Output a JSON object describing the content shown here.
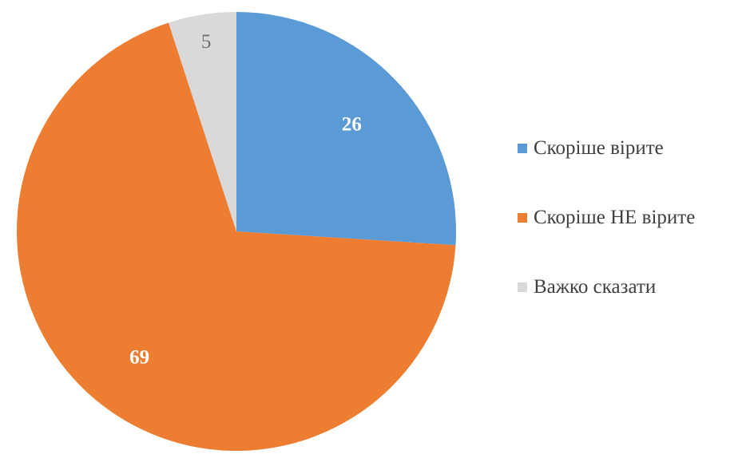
{
  "chart_data": {
    "type": "pie",
    "start_angle": "12 o'clock, clockwise",
    "legend_position": "right",
    "series": [
      {
        "name": "Скоріше вірите",
        "value": 26,
        "label": "26",
        "color": "#5B9BD5",
        "label_color": "#FFFFFF",
        "label_bold": true
      },
      {
        "name": "Скоріше НЕ вірите",
        "value": 69,
        "label": "69",
        "color": "#ED7D31",
        "label_color": "#FFFFFF",
        "label_bold": true
      },
      {
        "name": "Важко сказати",
        "value": 5,
        "label": "5",
        "color": "#D9D9D9",
        "label_color": "#707070",
        "label_bold": false
      }
    ]
  }
}
